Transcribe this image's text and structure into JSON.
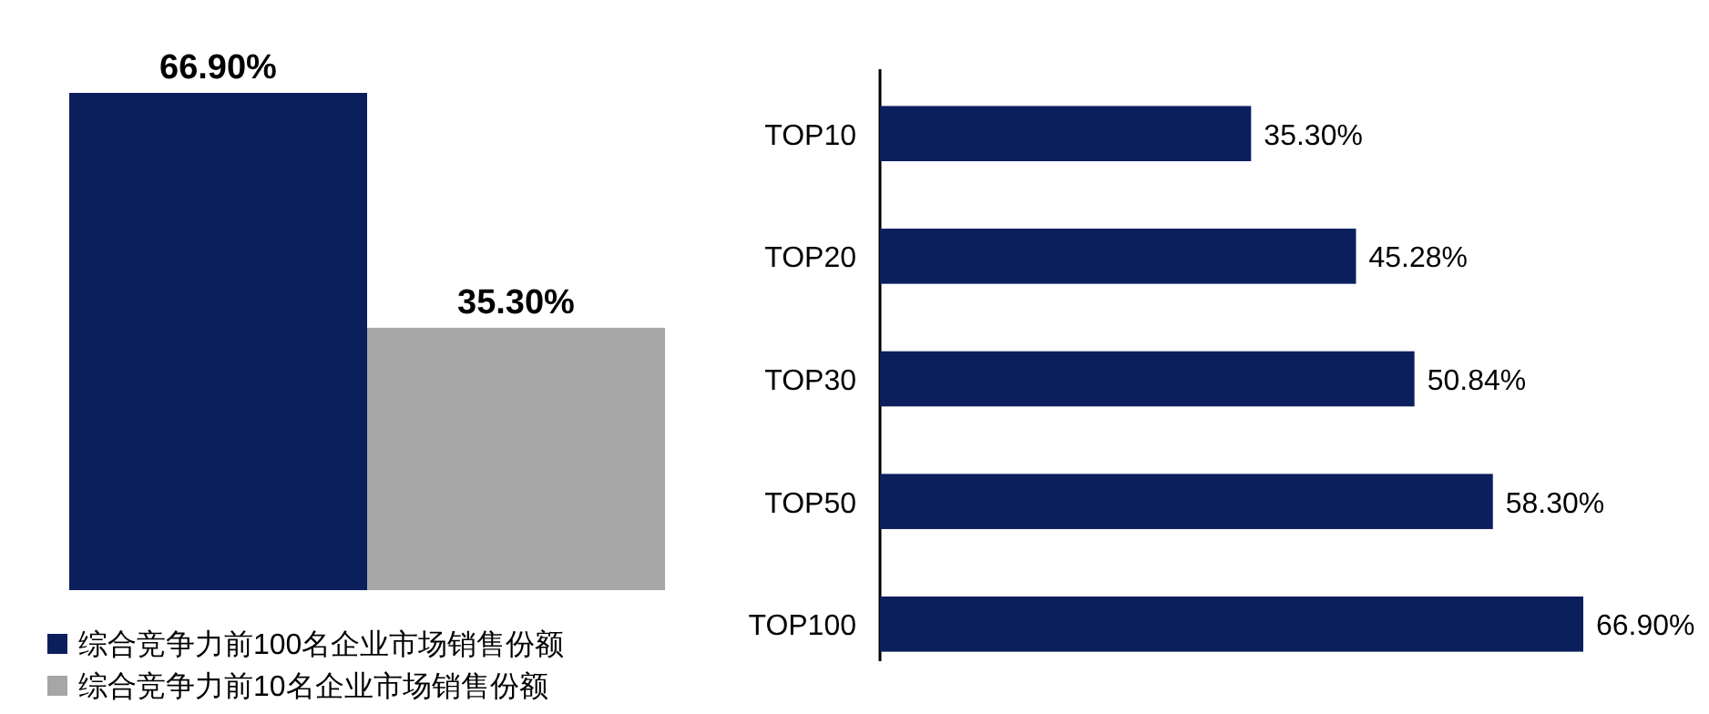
{
  "chart_data": [
    {
      "type": "bar",
      "categories": [
        null
      ],
      "legend": "bottom",
      "series": [
        {
          "name": "综合竞争力前100名企业市场销售份额",
          "color": "#0b1f5c",
          "values": [
            66.9
          ],
          "value_labels": [
            "66.90%"
          ]
        },
        {
          "name": "综合竞争力前10名企业市场销售份额",
          "color": "#a6a6a6",
          "values": [
            35.3
          ],
          "value_labels": [
            "35.30%"
          ]
        }
      ]
    },
    {
      "type": "bar",
      "orientation": "horizontal",
      "categories": [
        "TOP10",
        "TOP20",
        "TOP30",
        "TOP50",
        "TOP100"
      ],
      "values": [
        35.3,
        45.28,
        50.84,
        58.3,
        66.9
      ],
      "color": "#0b1f5c",
      "value_labels": [
        "35.30%",
        "45.28%",
        "50.84%",
        "58.30%",
        "66.90%"
      ]
    }
  ]
}
